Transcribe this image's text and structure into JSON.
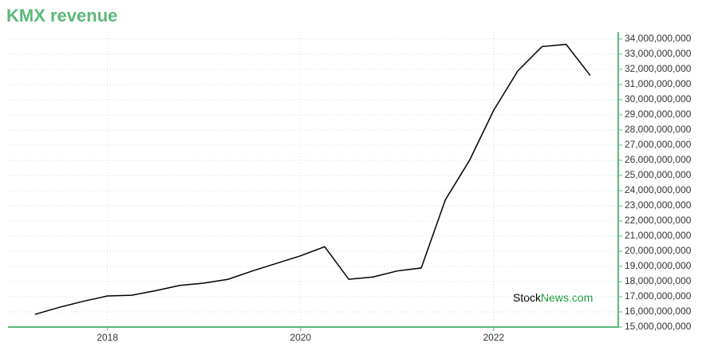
{
  "chart_data": {
    "type": "line",
    "title": "KMX revenue",
    "x": [
      2017.25,
      2017.5,
      2017.75,
      2018,
      2018.25,
      2018.5,
      2018.75,
      2019,
      2019.25,
      2019.5,
      2019.75,
      2020,
      2020.25,
      2020.5,
      2020.75,
      2021,
      2021.25,
      2021.5,
      2021.75,
      2022,
      2022.25,
      2022.5,
      2022.75,
      2023
    ],
    "series": [
      {
        "name": "KMX revenue",
        "color": "#000000",
        "values": [
          15840000000,
          16300000000,
          16700000000,
          17050000000,
          17100000000,
          17400000000,
          17750000000,
          17900000000,
          18150000000,
          18700000000,
          19200000000,
          19700000000,
          20300000000,
          18150000000,
          18300000000,
          18700000000,
          18900000000,
          23400000000,
          26000000000,
          29300000000,
          31900000000,
          33500000000,
          33650000000,
          31600000000
        ]
      }
    ],
    "xlim": [
      2016.97,
      2023.29
    ],
    "xticks": [
      2018,
      2020,
      2022
    ],
    "ylim": [
      15000000000,
      34470000000
    ],
    "yticks": [
      {
        "value": 15000000000,
        "label": "15,000,000,000"
      },
      {
        "value": 16000000000,
        "label": "16,000,000,000"
      },
      {
        "value": 17000000000,
        "label": "17,000,000,000"
      },
      {
        "value": 18000000000,
        "label": "18,000,000,000"
      },
      {
        "value": 19000000000,
        "label": "19,000,000,000"
      },
      {
        "value": 20000000000,
        "label": "20,000,000,000"
      },
      {
        "value": 21000000000,
        "label": "21,000,000,000"
      },
      {
        "value": 22000000000,
        "label": "22,000,000,000"
      },
      {
        "value": 23000000000,
        "label": "23,000,000,000"
      },
      {
        "value": 24000000000,
        "label": "24,000,000,000"
      },
      {
        "value": 25000000000,
        "label": "25,000,000,000"
      },
      {
        "value": 26000000000,
        "label": "26,000,000,000"
      },
      {
        "value": 27000000000,
        "label": "27,000,000,000"
      },
      {
        "value": 28000000000,
        "label": "28,000,000,000"
      },
      {
        "value": 29000000000,
        "label": "29,000,000,000"
      },
      {
        "value": 30000000000,
        "label": "30,000,000,000"
      },
      {
        "value": 31000000000,
        "label": "31,000,000,000"
      },
      {
        "value": 32000000000,
        "label": "32,000,000,000"
      },
      {
        "value": 33000000000,
        "label": "33,000,000,000"
      },
      {
        "value": 34000000000,
        "label": "34,000,000,000"
      }
    ],
    "grid": true,
    "axis_color": "#5cb87a",
    "watermark": [
      "Stock",
      "News.com"
    ]
  }
}
